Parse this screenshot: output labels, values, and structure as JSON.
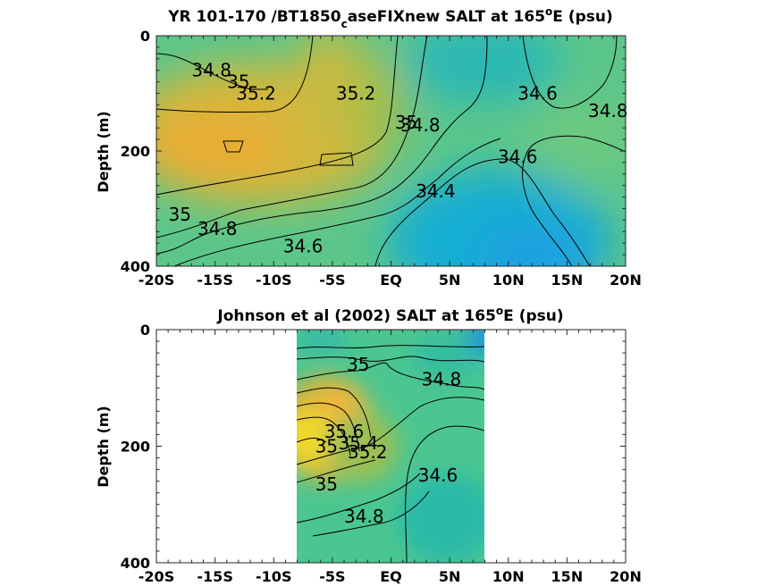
{
  "chart_data": [
    {
      "type": "heatmap",
      "title_parts": [
        "YR 101-170 /BT1850",
        "c",
        "aseFIXnew SALT at 165",
        "o",
        "E (psu)"
      ],
      "xlabel": "",
      "ylabel": "Depth (m)",
      "x_range": [
        -20,
        20
      ],
      "y_range": [
        0,
        400
      ],
      "x_ticks": [
        "-20S",
        "-15S",
        "-10S",
        "-5S",
        "EQ",
        "5N",
        "10N",
        "15N",
        "20N"
      ],
      "y_ticks": [
        "0",
        "200",
        "400"
      ],
      "y_reversed": true,
      "colormap": "parula",
      "contour_labels": [
        {
          "text": "34.8",
          "x": -15.3,
          "y": 60
        },
        {
          "text": "35",
          "x": -13.0,
          "y": 80
        },
        {
          "text": "35.2",
          "x": -11.5,
          "y": 100
        },
        {
          "text": "35.2",
          "x": -3.0,
          "y": 100
        },
        {
          "text": "35",
          "x": 1.3,
          "y": 150
        },
        {
          "text": "34.8",
          "x": 2.5,
          "y": 155
        },
        {
          "text": "34.6",
          "x": 12.5,
          "y": 100
        },
        {
          "text": "34.8",
          "x": 18.5,
          "y": 130
        },
        {
          "text": "34.6",
          "x": 10.8,
          "y": 210
        },
        {
          "text": "34.4",
          "x": 3.8,
          "y": 270
        },
        {
          "text": "35",
          "x": -18.0,
          "y": 310
        },
        {
          "text": "34.8",
          "x": -14.8,
          "y": 335
        },
        {
          "text": "34.6",
          "x": -7.5,
          "y": 365
        }
      ]
    },
    {
      "type": "heatmap",
      "title_parts": [
        "Johnson et al (2002) SALT at 165",
        "o",
        "E (psu)"
      ],
      "xlabel": "",
      "ylabel": "Depth (m)",
      "x_range": [
        -20,
        20
      ],
      "y_range": [
        0,
        400
      ],
      "x_ticks": [
        "-20S",
        "-15S",
        "-10S",
        "-5S",
        "EQ",
        "5N",
        "10N",
        "15N",
        "20N"
      ],
      "y_ticks": [
        "0",
        "200",
        "400"
      ],
      "y_reversed": true,
      "data_x_range": [
        -8,
        8
      ],
      "colormap": "parula",
      "contour_labels": [
        {
          "text": "35",
          "x": -2.8,
          "y": 60
        },
        {
          "text": "34.8",
          "x": 4.3,
          "y": 85
        },
        {
          "text": "35.6",
          "x": -4.0,
          "y": 175
        },
        {
          "text": "35",
          "x": -5.5,
          "y": 200
        },
        {
          "text": "35.4",
          "x": -2.8,
          "y": 195
        },
        {
          "text": "35.2",
          "x": -2.0,
          "y": 210
        },
        {
          "text": "34.6",
          "x": 4.0,
          "y": 250
        },
        {
          "text": "35",
          "x": -5.5,
          "y": 265
        },
        {
          "text": "34.8",
          "x": -2.3,
          "y": 320
        }
      ]
    }
  ]
}
